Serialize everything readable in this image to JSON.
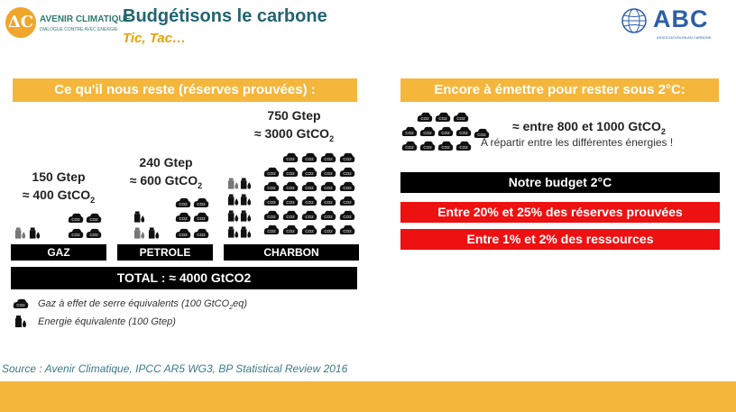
{
  "header": {
    "logo_left_name": "AVENIR CLIMATIQUE",
    "logo_left_tagline": "DIALOGUE CONTRE AVEC ENERGIE",
    "logo_left_mark": "ΔC",
    "title": "Budgétisons le carbone",
    "subtitle": "Tic, Tac…",
    "logo_right_name": "ABC",
    "logo_right_tagline": "ASSOCIATION BILAN CARBONE"
  },
  "left": {
    "banner": "Ce qu'il nous reste (réserves prouvées) :",
    "groups": [
      {
        "energy": "150 Gtep",
        "co2": "≈ 400 GtCO",
        "co2_sub": "2",
        "category": "GAZ"
      },
      {
        "energy": "240 Gtep",
        "co2": "≈ 600 GtCO",
        "co2_sub": "2",
        "category": "PETROLE"
      },
      {
        "energy": "750 Gtep",
        "co2": "≈ 3000 GtCO",
        "co2_sub": "2",
        "category": "CHARBON"
      }
    ],
    "total": "TOTAL : ≈ 4000 GtCO2",
    "legend": [
      {
        "text": "Gaz à effet de serre équivalents (100 GtCO",
        "sub": "2",
        "tail": "eq)"
      },
      {
        "text": "Energie équivalente (100 Gtep)"
      }
    ],
    "source": "Source : Avenir Climatique, IPCC AR5 WG3, BP Statistical Review 2016"
  },
  "right": {
    "banner": "Encore à émettre pour rester sous 2°C:",
    "main": "≈ entre 800 et 1000 GtCO",
    "main_sub": "2",
    "note": "A répartir entre les différentes énergies !",
    "budget": "Notre budget 2°C",
    "bar1": "Entre 20% et 25% des réserves prouvées",
    "bar2": "Entre 1% et 2% des ressources"
  },
  "icons": {
    "co2_label": "CO2"
  },
  "colors": {
    "accent_orange": "#f5b63c",
    "title_teal": "#226470",
    "subtitle_yellow": "#e8a200",
    "alert_red": "#ee1111",
    "abc_blue": "#2c5fa8"
  }
}
